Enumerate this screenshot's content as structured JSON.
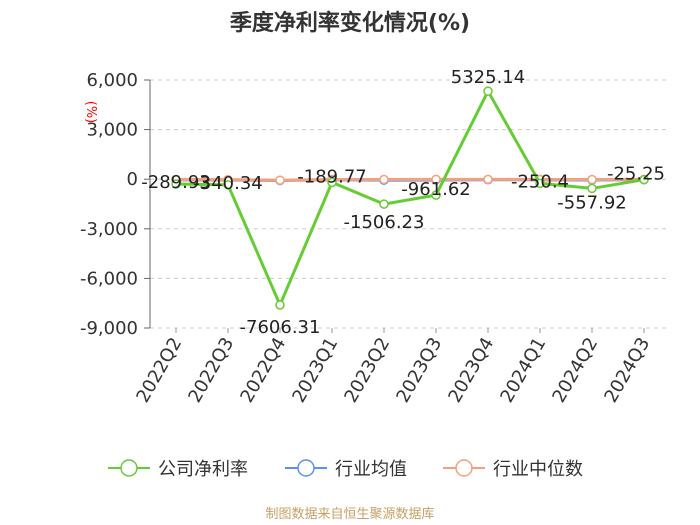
{
  "chart_data": {
    "type": "line",
    "title": "季度净利率变化情况(%)",
    "unit_label": "(%)",
    "categories": [
      "2022Q2",
      "2022Q3",
      "2022Q4",
      "2023Q1",
      "2023Q2",
      "2023Q3",
      "2023Q4",
      "2024Q1",
      "2024Q2",
      "2024Q3"
    ],
    "ylim": [
      -9000,
      6000
    ],
    "yticks": [
      6000,
      3000,
      0,
      -3000,
      -6000,
      -9000
    ],
    "ytick_labels": [
      "6,000",
      "3,000",
      "0",
      "-3,000",
      "-6,000",
      "-9,000"
    ],
    "grid": true,
    "legend_position": "bottom",
    "series": [
      {
        "name": "公司净利率",
        "color": "#66cc33",
        "values": [
          -289.93,
          -340.34,
          -7606.31,
          -189.77,
          -1506.23,
          -961.62,
          5325.14,
          -250.4,
          -557.92,
          -25.25
        ],
        "labels": [
          "-289.93",
          "-340.34",
          "-7606.31",
          "-189.77",
          "-1506.23",
          "-961.62",
          "5325.14",
          "-250.4",
          "-557.92",
          "-25.25"
        ]
      },
      {
        "name": "行业均值",
        "color": "#5b8ff9",
        "values": [
          -40,
          -50,
          -80,
          -30,
          -60,
          -45,
          -35,
          -40,
          -50,
          -30
        ]
      },
      {
        "name": "行业中位数",
        "color": "#f4a07a",
        "values": [
          -20,
          -25,
          -60,
          -20,
          -15,
          -10,
          -10,
          -15,
          -20,
          -10
        ]
      }
    ],
    "source": "制图数据来自恒生聚源数据库"
  }
}
